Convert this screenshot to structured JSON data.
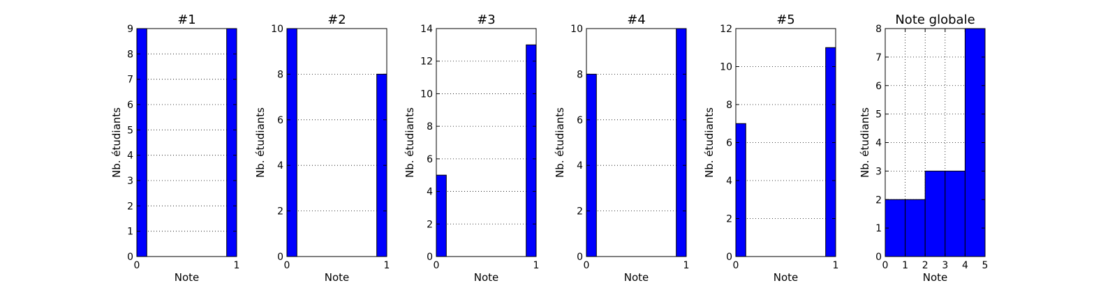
{
  "chart_data": [
    {
      "type": "bar",
      "title": "#1",
      "xlabel": "Note",
      "ylabel": "Nb. étudiants",
      "xlim": [
        0,
        1
      ],
      "ylim": [
        0,
        9
      ],
      "xticks": [
        0,
        1
      ],
      "yticks": [
        0,
        1,
        2,
        3,
        4,
        5,
        6,
        7,
        8,
        9
      ],
      "grid": "y-dotted",
      "bins": [
        {
          "x0": 0,
          "x1": 0.1,
          "value": 9
        },
        {
          "x0": 0.9,
          "x1": 1,
          "value": 9
        }
      ]
    },
    {
      "type": "bar",
      "title": "#2",
      "xlabel": "Note",
      "ylabel": "Nb. étudiants",
      "xlim": [
        0,
        1
      ],
      "ylim": [
        0,
        10
      ],
      "xticks": [
        0,
        1
      ],
      "yticks": [
        0,
        2,
        4,
        6,
        8,
        10
      ],
      "grid": "y-dotted",
      "bins": [
        {
          "x0": 0,
          "x1": 0.1,
          "value": 10
        },
        {
          "x0": 0.9,
          "x1": 1,
          "value": 8
        }
      ]
    },
    {
      "type": "bar",
      "title": "#3",
      "xlabel": "Note",
      "ylabel": "Nb. étudiants",
      "xlim": [
        0,
        1
      ],
      "ylim": [
        0,
        14
      ],
      "xticks": [
        0,
        1
      ],
      "yticks": [
        0,
        2,
        4,
        6,
        8,
        10,
        12,
        14
      ],
      "grid": "y-dotted",
      "bins": [
        {
          "x0": 0,
          "x1": 0.1,
          "value": 5
        },
        {
          "x0": 0.9,
          "x1": 1,
          "value": 13
        }
      ]
    },
    {
      "type": "bar",
      "title": "#4",
      "xlabel": "Note",
      "ylabel": "Nb. étudiants",
      "xlim": [
        0,
        1
      ],
      "ylim": [
        0,
        10
      ],
      "xticks": [
        0,
        1
      ],
      "yticks": [
        0,
        2,
        4,
        6,
        8,
        10
      ],
      "grid": "y-dotted",
      "bins": [
        {
          "x0": 0,
          "x1": 0.1,
          "value": 8
        },
        {
          "x0": 0.9,
          "x1": 1,
          "value": 10
        }
      ]
    },
    {
      "type": "bar",
      "title": "#5",
      "xlabel": "Note",
      "ylabel": "Nb. étudiants",
      "xlim": [
        0,
        1
      ],
      "ylim": [
        0,
        12
      ],
      "xticks": [
        0,
        1
      ],
      "yticks": [
        0,
        2,
        4,
        6,
        8,
        10,
        12
      ],
      "grid": "y-dotted",
      "bins": [
        {
          "x0": 0,
          "x1": 0.1,
          "value": 7
        },
        {
          "x0": 0.9,
          "x1": 1,
          "value": 11
        }
      ]
    },
    {
      "type": "bar",
      "title": "Note globale",
      "xlabel": "Note",
      "ylabel": "Nb. étudiants",
      "xlim": [
        0,
        5
      ],
      "ylim": [
        0,
        8
      ],
      "xticks": [
        0,
        1,
        2,
        3,
        4,
        5
      ],
      "yticks": [
        0,
        1,
        2,
        3,
        4,
        5,
        6,
        7,
        8
      ],
      "grid": "xy-dotted",
      "bins": [
        {
          "x0": 0,
          "x1": 1,
          "value": 2
        },
        {
          "x0": 1,
          "x1": 2,
          "value": 2
        },
        {
          "x0": 2,
          "x1": 3,
          "value": 3
        },
        {
          "x0": 3,
          "x1": 4,
          "value": 3
        },
        {
          "x0": 4,
          "x1": 5,
          "value": 8
        }
      ]
    }
  ],
  "colors": {
    "bar_fill": "#0000ff",
    "bar_edge": "#000000",
    "grid": "#000000"
  }
}
